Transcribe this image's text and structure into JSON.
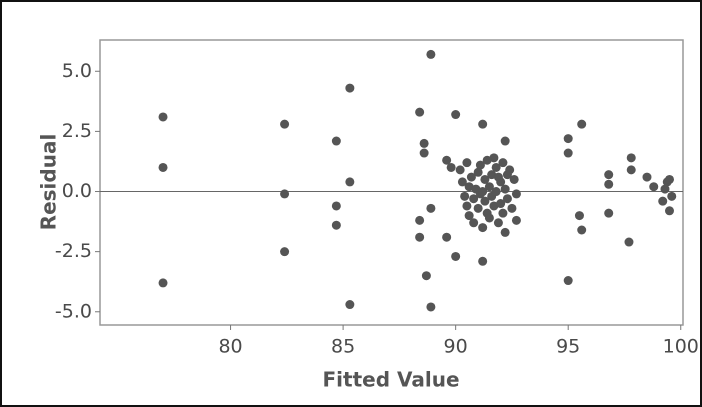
{
  "chart_data": {
    "type": "scatter",
    "x_label": "Fitted Value",
    "y_label": "Residual",
    "color": "#555555",
    "xlim": [
      74.2,
      100.1
    ],
    "ylim": [
      -5.55,
      6.3
    ],
    "xticks": [
      80,
      85,
      90,
      95,
      100
    ],
    "yticks": [
      {
        "value": 5,
        "label": "5.0"
      },
      {
        "value": 2.5,
        "label": "2.5"
      },
      {
        "value": 0,
        "label": "0.0"
      },
      {
        "value": -2.5,
        "label": "-2.5"
      },
      {
        "value": -5,
        "label": "-5.0"
      }
    ],
    "x": [
      77.0,
      77.0,
      77.0,
      82.4,
      82.4,
      82.4,
      84.7,
      84.7,
      84.7,
      85.3,
      85.3,
      85.3,
      88.9,
      88.4,
      88.6,
      88.6,
      88.4,
      88.4,
      88.7,
      88.9,
      88.9,
      90.0,
      89.6,
      89.8,
      89.6,
      90.0,
      91.2,
      91.2,
      91.7,
      92.2,
      92.3,
      92.2,
      90.2,
      90.3,
      90.4,
      90.5,
      90.6,
      90.6,
      90.7,
      90.8,
      90.8,
      90.9,
      91.0,
      91.0,
      91.1,
      91.1,
      91.2,
      91.3,
      91.3,
      91.4,
      91.4,
      91.5,
      91.5,
      91.6,
      91.6,
      91.7,
      91.8,
      91.8,
      91.9,
      92.0,
      92.0,
      92.1,
      92.1,
      92.2,
      92.3,
      92.4,
      92.5,
      92.6,
      92.7,
      92.7,
      90.5,
      91.2,
      91.9,
      95.0,
      95.0,
      95.0,
      95.6,
      95.5,
      95.6,
      96.8,
      96.8,
      96.8,
      97.8,
      97.8,
      97.7,
      98.5,
      98.8,
      99.2,
      99.4,
      99.5,
      99.3,
      99.6,
      99.5
    ],
    "values": [
      3.1,
      1.0,
      -3.8,
      2.8,
      -0.1,
      -2.5,
      2.1,
      -0.6,
      -1.4,
      4.3,
      0.4,
      -4.7,
      5.7,
      3.3,
      2.0,
      1.6,
      -1.2,
      -1.9,
      -3.5,
      -4.8,
      -0.7,
      3.2,
      1.3,
      1.0,
      -1.9,
      -2.7,
      2.8,
      -2.9,
      1.4,
      2.1,
      0.7,
      -1.7,
      0.9,
      0.4,
      -0.2,
      -0.6,
      0.2,
      -1.0,
      0.6,
      -0.3,
      -1.3,
      0.1,
      0.8,
      -0.7,
      1.1,
      -0.1,
      -1.5,
      0.5,
      -0.4,
      1.3,
      -0.9,
      0.2,
      -1.1,
      0.7,
      -0.2,
      -0.6,
      1.0,
      0.0,
      -1.3,
      0.4,
      -0.5,
      1.2,
      -0.9,
      0.1,
      -0.3,
      0.9,
      -0.7,
      0.5,
      -0.1,
      -1.2,
      1.2,
      0.0,
      0.6,
      2.2,
      1.6,
      -3.7,
      2.8,
      -1.0,
      -1.6,
      0.7,
      0.3,
      -0.9,
      1.4,
      0.9,
      -2.1,
      0.6,
      0.2,
      -0.4,
      0.4,
      -0.8,
      0.1,
      -0.2,
      0.5
    ]
  }
}
